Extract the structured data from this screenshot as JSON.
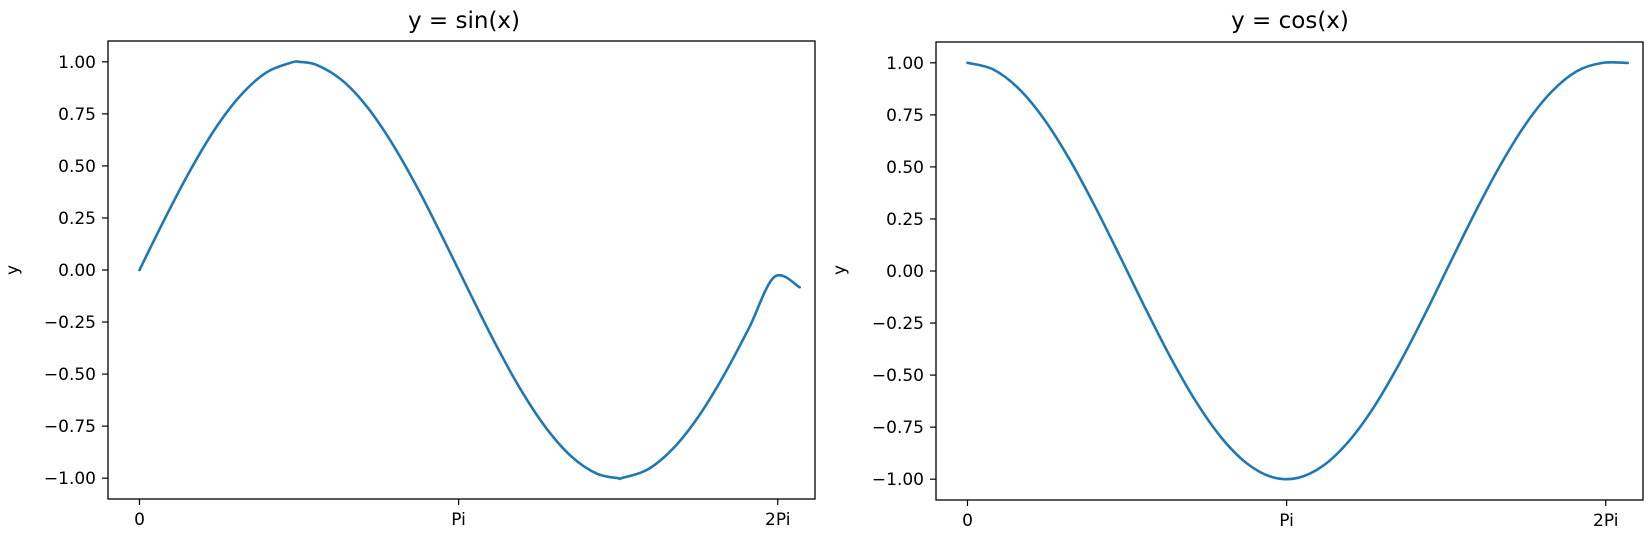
{
  "chart_data": [
    {
      "type": "line",
      "title": "y = sin(x)",
      "ylabel": "y",
      "xlim": [
        -0.31,
        6.65
      ],
      "ylim": [
        -1.1,
        1.1
      ],
      "x_ticks": [
        {
          "value": 0,
          "label": "0"
        },
        {
          "value": 3.14159,
          "label": "Pi"
        },
        {
          "value": 6.28318,
          "label": "2Pi"
        }
      ],
      "y_ticks": [
        {
          "value": 1.0,
          "label": "1.00"
        },
        {
          "value": 0.75,
          "label": "0.75"
        },
        {
          "value": 0.5,
          "label": "0.50"
        },
        {
          "value": 0.25,
          "label": "0.25"
        },
        {
          "value": 0.0,
          "label": "0.00"
        },
        {
          "value": -0.25,
          "label": "−0.25"
        },
        {
          "value": -0.5,
          "label": "−0.50"
        },
        {
          "value": -0.75,
          "label": "−0.75"
        },
        {
          "value": -1.0,
          "label": "−1.00"
        }
      ],
      "series": [
        {
          "color": "#1f77b4",
          "x": [
            0.0,
            0.25,
            0.5,
            0.75,
            1.0,
            1.25,
            1.5,
            1.571,
            1.75,
            2.0,
            2.25,
            2.5,
            2.75,
            3.0,
            3.25,
            3.5,
            3.75,
            4.0,
            4.25,
            4.5,
            4.712,
            4.75,
            5.0,
            5.25,
            5.5,
            5.75,
            6.0,
            6.25,
            6.5
          ],
          "y": [
            0.0,
            0.247,
            0.479,
            0.682,
            0.841,
            0.949,
            0.997,
            1.0,
            0.984,
            0.909,
            0.778,
            0.598,
            0.382,
            0.141,
            -0.108,
            -0.351,
            -0.572,
            -0.757,
            -0.895,
            -0.978,
            -1.0,
            -0.999,
            -0.959,
            -0.859,
            -0.706,
            -0.508,
            -0.279,
            -0.033,
            -0.083
          ]
        }
      ]
    },
    {
      "type": "line",
      "title": "y = cos(x)",
      "ylabel": "y",
      "xlim": [
        -0.31,
        6.65
      ],
      "ylim": [
        -1.1,
        1.1
      ],
      "x_ticks": [
        {
          "value": 0,
          "label": "0"
        },
        {
          "value": 3.14159,
          "label": "Pi"
        },
        {
          "value": 6.28318,
          "label": "2Pi"
        }
      ],
      "y_ticks": [
        {
          "value": 1.0,
          "label": "1.00"
        },
        {
          "value": 0.75,
          "label": "0.75"
        },
        {
          "value": 0.5,
          "label": "0.50"
        },
        {
          "value": 0.25,
          "label": "0.25"
        },
        {
          "value": 0.0,
          "label": "0.00"
        },
        {
          "value": -0.25,
          "label": "−0.25"
        },
        {
          "value": -0.5,
          "label": "−0.50"
        },
        {
          "value": -0.75,
          "label": "−0.75"
        },
        {
          "value": -1.0,
          "label": "−1.00"
        }
      ],
      "series": [
        {
          "color": "#1f77b4",
          "x": [
            0.0,
            0.25,
            0.5,
            0.75,
            1.0,
            1.25,
            1.5,
            1.75,
            2.0,
            2.25,
            2.5,
            2.75,
            3.0,
            3.25,
            3.5,
            3.75,
            4.0,
            4.25,
            4.5,
            4.75,
            5.0,
            5.25,
            5.5,
            5.75,
            6.0,
            6.25,
            6.5
          ],
          "y": [
            1.0,
            0.969,
            0.878,
            0.732,
            0.54,
            0.315,
            0.071,
            -0.178,
            -0.416,
            -0.628,
            -0.801,
            -0.924,
            -0.99,
            -0.994,
            -0.936,
            -0.82,
            -0.654,
            -0.446,
            -0.211,
            0.038,
            0.284,
            0.512,
            0.709,
            0.861,
            0.96,
            0.9997,
            0.9995
          ]
        }
      ]
    }
  ]
}
